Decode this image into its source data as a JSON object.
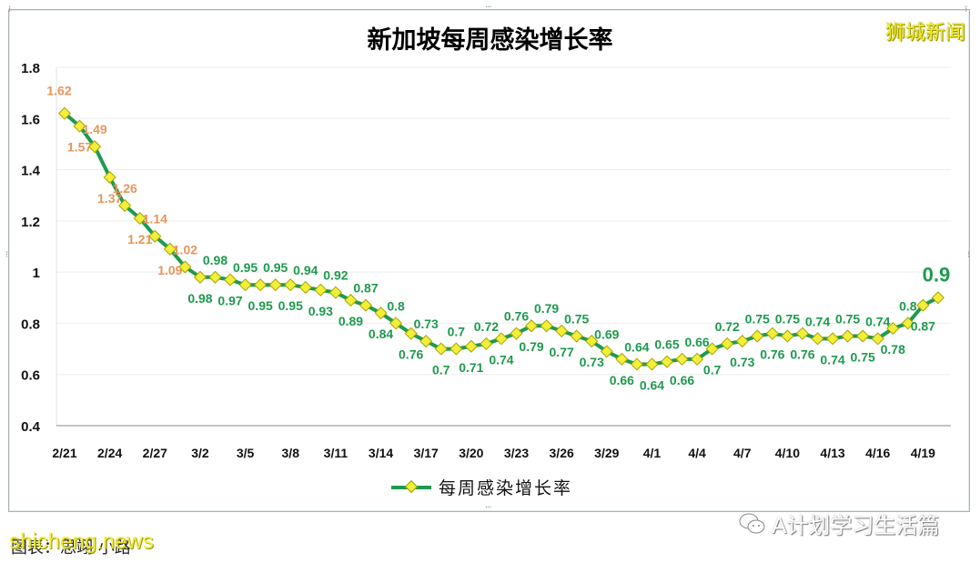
{
  "title": "新加坡每周感染增长率",
  "brand_watermark": "狮城新闻",
  "legend": {
    "label": "每周感染增长率"
  },
  "credit": "图表：思翊 小路",
  "source_watermark": "shicheng.news",
  "wechat_account": "A计划学习生活篇",
  "colors": {
    "line": "#1e9a4e",
    "marker": "#f2ef3a",
    "label_high": "#e8955a",
    "label_low": "#1e9a4e",
    "axis_text": "#111111",
    "grid": "#eeeeee"
  },
  "y_ticks": [
    "0.4",
    "0.6",
    "0.8",
    "1",
    "1.2",
    "1.4",
    "1.6",
    "1.8"
  ],
  "x_ticks": [
    "2/21",
    "2/24",
    "2/27",
    "3/2",
    "3/5",
    "3/8",
    "3/11",
    "3/14",
    "3/17",
    "3/20",
    "3/23",
    "3/26",
    "3/29",
    "4/1",
    "4/4",
    "4/7",
    "4/10",
    "4/13",
    "4/16",
    "4/19"
  ],
  "chart_data": {
    "type": "line",
    "title": "新加坡每周感染增长率",
    "xlabel": "",
    "ylabel": "",
    "ylim": [
      0.4,
      1.8
    ],
    "grid": true,
    "legend_position": "bottom",
    "x_tick_labels": [
      "2/21",
      "2/24",
      "2/27",
      "3/2",
      "3/5",
      "3/8",
      "3/11",
      "3/14",
      "3/17",
      "3/20",
      "3/23",
      "3/26",
      "3/29",
      "4/1",
      "4/4",
      "4/7",
      "4/10",
      "4/13",
      "4/16",
      "4/19"
    ],
    "x": [
      "2/21",
      "2/22",
      "2/23",
      "2/24",
      "2/25",
      "2/26",
      "2/27",
      "2/28",
      "3/1",
      "3/2",
      "3/3",
      "3/4",
      "3/5",
      "3/6",
      "3/7",
      "3/8",
      "3/9",
      "3/10",
      "3/11",
      "3/12",
      "3/13",
      "3/14",
      "3/15",
      "3/16",
      "3/17",
      "3/18",
      "3/19",
      "3/20",
      "3/21",
      "3/22",
      "3/23",
      "3/24",
      "3/25",
      "3/26",
      "3/27",
      "3/28",
      "3/29",
      "3/30",
      "3/31",
      "4/1",
      "4/2",
      "4/3",
      "4/4",
      "4/5",
      "4/6",
      "4/7",
      "4/8",
      "4/9",
      "4/10",
      "4/11",
      "4/12",
      "4/13",
      "4/14",
      "4/15",
      "4/16",
      "4/17",
      "4/18",
      "4/19",
      "4/20"
    ],
    "series": [
      {
        "name": "每周感染增长率",
        "values": [
          1.62,
          1.57,
          1.49,
          1.37,
          1.26,
          1.21,
          1.14,
          1.09,
          1.02,
          0.98,
          0.98,
          0.97,
          0.95,
          0.95,
          0.95,
          0.95,
          0.94,
          0.93,
          0.92,
          0.89,
          0.87,
          0.84,
          0.8,
          0.76,
          0.73,
          0.7,
          0.7,
          0.71,
          0.72,
          0.74,
          0.76,
          0.79,
          0.79,
          0.77,
          0.75,
          0.73,
          0.69,
          0.66,
          0.64,
          0.64,
          0.65,
          0.66,
          0.66,
          0.7,
          0.72,
          0.73,
          0.75,
          0.76,
          0.75,
          0.76,
          0.74,
          0.74,
          0.75,
          0.75,
          0.74,
          0.78,
          0.8,
          0.87,
          0.9
        ]
      }
    ]
  }
}
